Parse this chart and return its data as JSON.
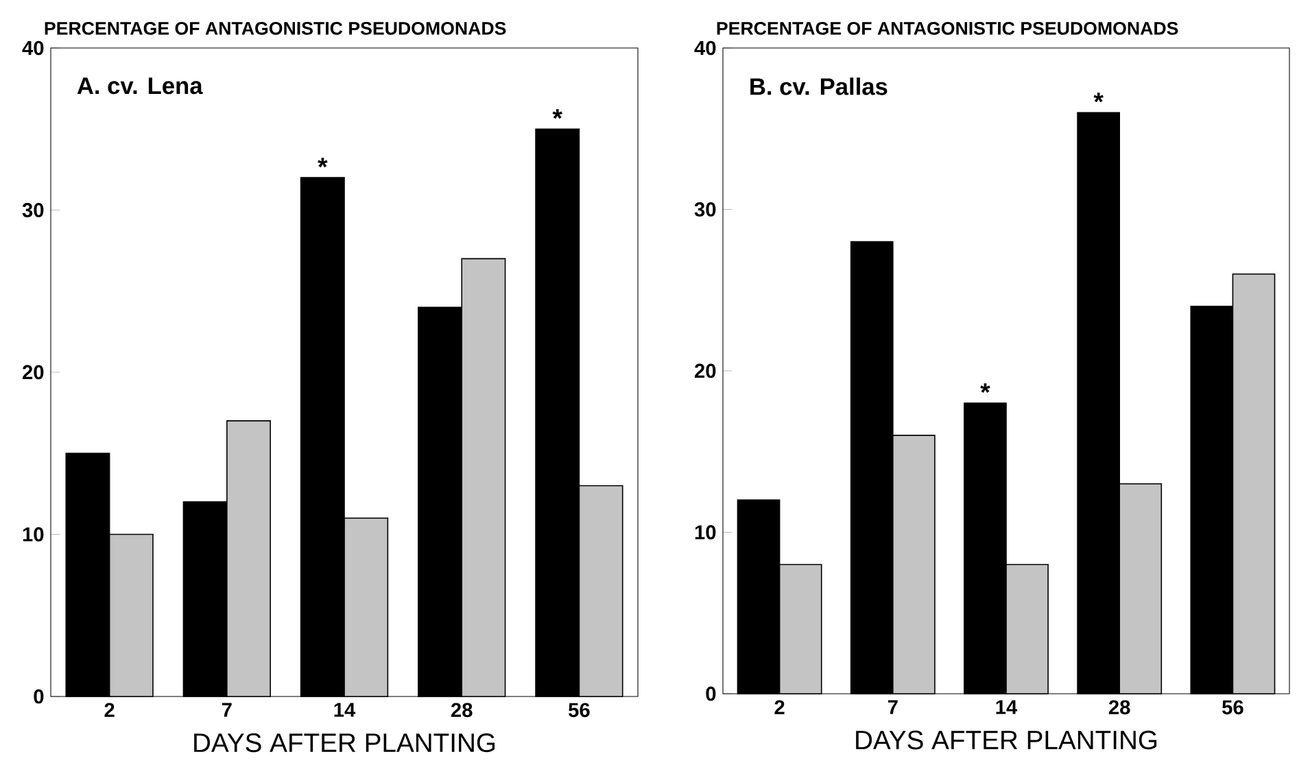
{
  "chart_data": [
    {
      "type": "bar",
      "ylabel": "PERCENTAGE OF ANTAGONISTIC PSEUDOMONADS",
      "xlabel": "DAYS AFTER PLANTING",
      "categories": [
        "2",
        "7",
        "14",
        "28",
        "56"
      ],
      "series": [
        {
          "color": "#000000",
          "values": [
            15,
            12,
            32,
            24,
            35
          ]
        },
        {
          "color": "#c4c4c4",
          "values": [
            10,
            17,
            11,
            27,
            13
          ]
        }
      ],
      "ylim": [
        0,
        40
      ],
      "yticks": [
        0,
        10,
        20,
        30,
        40
      ],
      "annotations": [
        "A.   cv. Lena",
        {
          "text": "*",
          "x": "14",
          "y": 32
        },
        {
          "text": "*",
          "x": "56",
          "y": 35
        }
      ]
    },
    {
      "type": "bar",
      "ylabel": "PERCENTAGE OF ANTAGONISTIC PSEUDOMONADS",
      "xlabel": "DAYS AFTER PLANTING",
      "categories": [
        "2",
        "7",
        "14",
        "28",
        "56"
      ],
      "series": [
        {
          "color": "#000000",
          "values": [
            12,
            28,
            18,
            36,
            24
          ]
        },
        {
          "color": "#c4c4c4",
          "values": [
            8,
            16,
            8,
            13,
            26
          ]
        }
      ],
      "ylim": [
        0,
        40
      ],
      "yticks": [
        0,
        10,
        20,
        30,
        40
      ],
      "annotations": [
        "B.   cv. Pallas",
        {
          "text": "*",
          "x": "14",
          "y": 18
        },
        {
          "text": "*",
          "x": "28",
          "y": 36
        }
      ]
    }
  ]
}
